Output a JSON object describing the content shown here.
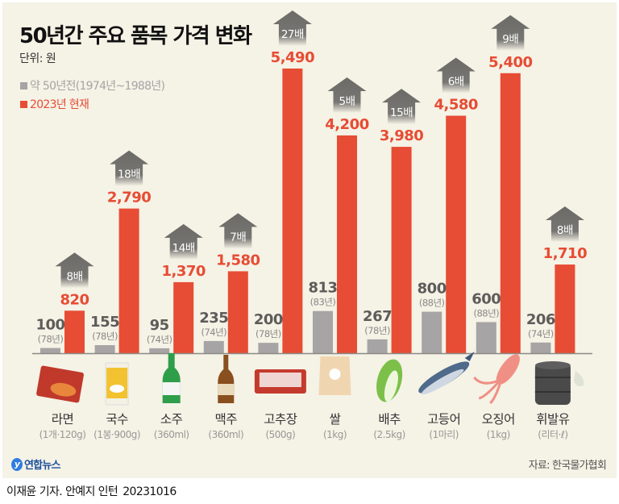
{
  "header": {
    "title": "50년간 주요 품목 가격 변화",
    "unit": "단위: 원"
  },
  "legend": [
    {
      "label": "약 50년전(1974년~1988년)",
      "color": "#a6a4a4"
    },
    {
      "label": "2023년 현재",
      "color": "#e74c34"
    }
  ],
  "colors": {
    "past": "#a6a4a4",
    "now": "#e74c34",
    "arrow": "#6b6a66",
    "background": "#f5f2e6"
  },
  "chart_data": {
    "type": "bar",
    "title": "50년간 주요 품목 가격 변화",
    "ylabel": "단위: 원",
    "xlabel": "",
    "ylim": [
      0,
      5490
    ],
    "grid": false,
    "legend_position": "top-left",
    "categories": [
      "라면",
      "국수",
      "소주",
      "맥주",
      "고추장",
      "쌀",
      "배추",
      "고등어",
      "오징어",
      "휘발유"
    ],
    "specs": [
      "(1개·120g)",
      "(1봉·900g)",
      "(360ml)",
      "(360ml)",
      "(500g)",
      "(1kg)",
      "(2.5kg)",
      "(1마리)",
      "(1kg)",
      "(리터·ℓ)"
    ],
    "past_years": [
      "(78년)",
      "(78년)",
      "(74년)",
      "(74년)",
      "(78년)",
      "(83년)",
      "(78년)",
      "(88년)",
      "(88년)",
      "(74년)"
    ],
    "multipliers": [
      "8배",
      "18배",
      "14배",
      "7배",
      "27배",
      "5배",
      "15배",
      "6배",
      "9배",
      "8배"
    ],
    "icons": [
      "ramen-package-icon",
      "noodle-package-icon",
      "soju-bottle-icon",
      "beer-bottle-icon",
      "gochujang-tub-icon",
      "rice-bag-icon",
      "cabbage-icon",
      "mackerel-icon",
      "squid-icon",
      "oil-barrel-icon"
    ],
    "series": [
      {
        "name": "약 50년전(1974년~1988년)",
        "values": [
          100,
          155,
          95,
          235,
          200,
          813,
          267,
          800,
          600,
          206
        ],
        "labels": [
          "100",
          "155",
          "95",
          "235",
          "200",
          "813",
          "267",
          "800",
          "600",
          "206"
        ]
      },
      {
        "name": "2023년 현재",
        "values": [
          820,
          2790,
          1370,
          1580,
          5490,
          4200,
          3980,
          4580,
          5400,
          1710
        ],
        "labels": [
          "820",
          "2,790",
          "1,370",
          "1,580",
          "5,490",
          "4,200",
          "3,980",
          "4,580",
          "5,400",
          "1,710"
        ]
      }
    ]
  },
  "footer": {
    "logo_text": "연합뉴스",
    "source": "자료: 한국물가협회",
    "credit": "이재윤 기자. 안예지 인턴",
    "date": "20231016"
  }
}
